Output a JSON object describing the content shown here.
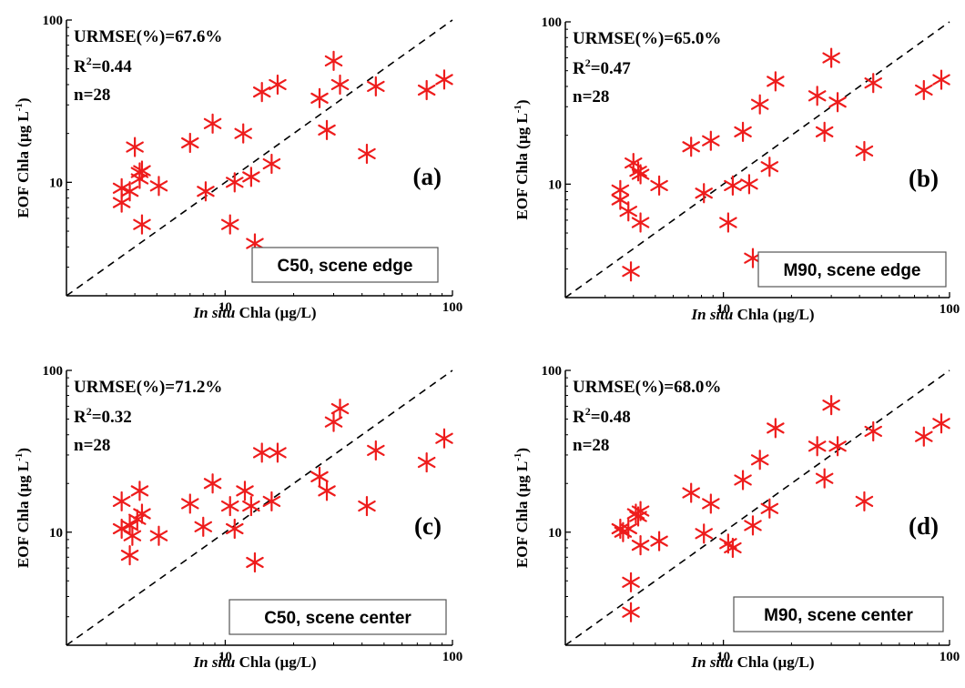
{
  "chart_data": [
    {
      "type": "scatter",
      "panel_tag": "(a)",
      "scene_label": "C50, scene edge",
      "stats": {
        "urmse": "URMSE(%)=67.6%",
        "r2_prefix": "R",
        "r2_sup": "2",
        "r2_value": "=0.44",
        "n": "n=28"
      },
      "xlabel_italic": "In situ",
      "xlabel_rest": " Chla (µg/L)",
      "ylabel": "EOF Chla (µg L",
      "ylabel_sup": "-1",
      "ylabel_end": ")",
      "x_scale": "log",
      "y_scale": "log",
      "xlim": [
        2.0,
        100
      ],
      "ylim": [
        2.0,
        100
      ],
      "x_ticks": [
        {
          "v": 10,
          "label": "10"
        },
        {
          "v": 100,
          "label": "100"
        }
      ],
      "y_ticks": [
        {
          "v": 10,
          "label": "10"
        },
        {
          "v": 100,
          "label": "100"
        }
      ],
      "reference_line": "1:1 dashed",
      "marker": "asterisk",
      "marker_color": "#ee1c1c",
      "points": [
        [
          3.5,
          7.5
        ],
        [
          3.5,
          9.2
        ],
        [
          3.8,
          8.8
        ],
        [
          4.0,
          16.5
        ],
        [
          4.2,
          10.5
        ],
        [
          4.3,
          11.8
        ],
        [
          4.3,
          5.5
        ],
        [
          5.1,
          9.5
        ],
        [
          7.0,
          17.5
        ],
        [
          8.2,
          8.8
        ],
        [
          8.8,
          23.0
        ],
        [
          10.5,
          5.5
        ],
        [
          11.0,
          10.0
        ],
        [
          12.0,
          20.0
        ],
        [
          13.0,
          10.8
        ],
        [
          13.5,
          4.2
        ],
        [
          14.5,
          36.0
        ],
        [
          16.0,
          13.0
        ],
        [
          17.0,
          40.0
        ],
        [
          26.0,
          33.0
        ],
        [
          28.0,
          21.0
        ],
        [
          30.0,
          56.0
        ],
        [
          32.0,
          40.0
        ],
        [
          42.0,
          15.0
        ],
        [
          46.0,
          39.0
        ],
        [
          77.0,
          37.0
        ],
        [
          92.0,
          43.0
        ],
        [
          4.2,
          11.5
        ]
      ]
    },
    {
      "type": "scatter",
      "panel_tag": "(b)",
      "scene_label": "M90, scene edge",
      "stats": {
        "urmse": "URMSE(%)=65.0%",
        "r2_prefix": "R",
        "r2_sup": "2",
        "r2_value": "=0.47",
        "n": "n=28"
      },
      "xlabel_italic": "In situ",
      "xlabel_rest": " Chla (µg/L)",
      "ylabel": "EOF Chla (µg L",
      "ylabel_sup": "-1",
      "ylabel_end": ")",
      "x_scale": "log",
      "y_scale": "log",
      "xlim": [
        2.0,
        100
      ],
      "ylim": [
        2.0,
        100
      ],
      "x_ticks": [
        {
          "v": 10,
          "label": "10"
        },
        {
          "v": 100,
          "label": "100"
        }
      ],
      "y_ticks": [
        {
          "v": 10,
          "label": "10"
        },
        {
          "v": 100,
          "label": "100"
        }
      ],
      "reference_line": "1:1 dashed",
      "marker": "asterisk",
      "marker_color": "#ee1c1c",
      "points": [
        [
          3.5,
          9.2
        ],
        [
          3.5,
          8.0
        ],
        [
          3.8,
          6.8
        ],
        [
          3.9,
          2.9
        ],
        [
          4.0,
          13.5
        ],
        [
          4.2,
          12.0
        ],
        [
          4.3,
          11.5
        ],
        [
          4.3,
          5.8
        ],
        [
          5.2,
          9.8
        ],
        [
          7.2,
          17.0
        ],
        [
          8.2,
          8.8
        ],
        [
          8.8,
          18.5
        ],
        [
          10.5,
          5.8
        ],
        [
          11.0,
          9.8
        ],
        [
          12.2,
          21.0
        ],
        [
          13.0,
          10.0
        ],
        [
          13.5,
          3.5
        ],
        [
          14.5,
          31.0
        ],
        [
          16.0,
          12.8
        ],
        [
          17.0,
          43.0
        ],
        [
          26.0,
          35.0
        ],
        [
          28.0,
          21.0
        ],
        [
          30.0,
          60.0
        ],
        [
          32.0,
          32.0
        ],
        [
          42.0,
          16.0
        ],
        [
          46.0,
          42.0
        ],
        [
          77.0,
          38.0
        ],
        [
          92.0,
          44.0
        ]
      ]
    },
    {
      "type": "scatter",
      "panel_tag": "(c)",
      "scene_label": "C50, scene center",
      "stats": {
        "urmse": "URMSE(%)=71.2%",
        "r2_prefix": "R",
        "r2_sup": "2",
        "r2_value": "=0.32",
        "n": "n=28"
      },
      "xlabel_italic": "In situ",
      "xlabel_rest": " Chla (µg/L)",
      "ylabel": "EOF Chla (µg L",
      "ylabel_sup": "-1",
      "ylabel_end": ")",
      "x_scale": "log",
      "y_scale": "log",
      "xlim": [
        2.0,
        100
      ],
      "ylim": [
        2.0,
        100
      ],
      "x_ticks": [
        {
          "v": 10,
          "label": "10"
        },
        {
          "v": 100,
          "label": "100"
        }
      ],
      "y_ticks": [
        {
          "v": 10,
          "label": "10"
        },
        {
          "v": 100,
          "label": "100"
        }
      ],
      "reference_line": "1:1 dashed",
      "marker": "asterisk",
      "marker_color": "#ee1c1c",
      "points": [
        [
          3.5,
          15.5
        ],
        [
          3.5,
          10.5
        ],
        [
          3.8,
          11.0
        ],
        [
          3.8,
          7.2
        ],
        [
          3.9,
          9.5
        ],
        [
          4.1,
          12.0
        ],
        [
          4.2,
          18.0
        ],
        [
          4.3,
          13.0
        ],
        [
          5.1,
          9.5
        ],
        [
          7.0,
          15.0
        ],
        [
          8.0,
          10.8
        ],
        [
          8.8,
          20.0
        ],
        [
          10.5,
          14.5
        ],
        [
          11.0,
          10.5
        ],
        [
          12.2,
          18.0
        ],
        [
          13.0,
          14.5
        ],
        [
          13.5,
          6.5
        ],
        [
          14.5,
          31.0
        ],
        [
          16.0,
          15.5
        ],
        [
          17.0,
          31.0
        ],
        [
          26.0,
          22.0
        ],
        [
          28.0,
          18.0
        ],
        [
          30.0,
          48.0
        ],
        [
          32.0,
          58.0
        ],
        [
          42.0,
          14.5
        ],
        [
          46.0,
          32.0
        ],
        [
          77.0,
          27.0
        ],
        [
          92.0,
          38.0
        ]
      ]
    },
    {
      "type": "scatter",
      "panel_tag": "(d)",
      "scene_label": "M90, scene center",
      "stats": {
        "urmse": "URMSE(%)=68.0%",
        "r2_prefix": "R",
        "r2_sup": "2",
        "r2_value": "=0.48",
        "n": "n=28"
      },
      "xlabel_italic": "In situ",
      "xlabel_rest": " Chla (µg/L)",
      "ylabel": "EOF Chla (µg L",
      "ylabel_sup": "-1",
      "ylabel_end": ")",
      "x_scale": "log",
      "y_scale": "log",
      "xlim": [
        2.0,
        100
      ],
      "ylim": [
        2.0,
        100
      ],
      "x_ticks": [
        {
          "v": 10,
          "label": "10"
        },
        {
          "v": 100,
          "label": "100"
        }
      ],
      "y_ticks": [
        {
          "v": 10,
          "label": "10"
        },
        {
          "v": 100,
          "label": "100"
        }
      ],
      "reference_line": "1:1 dashed",
      "marker": "asterisk",
      "marker_color": "#ee1c1c",
      "points": [
        [
          3.5,
          10.5
        ],
        [
          3.6,
          10.0
        ],
        [
          3.8,
          10.5
        ],
        [
          3.9,
          4.9
        ],
        [
          3.9,
          3.2
        ],
        [
          4.1,
          13.0
        ],
        [
          4.3,
          13.5
        ],
        [
          4.3,
          8.3
        ],
        [
          5.2,
          8.8
        ],
        [
          7.2,
          17.5
        ],
        [
          8.2,
          9.8
        ],
        [
          8.8,
          15.0
        ],
        [
          10.5,
          8.5
        ],
        [
          11.0,
          8.0
        ],
        [
          12.2,
          21.0
        ],
        [
          13.5,
          11.0
        ],
        [
          14.5,
          28.0
        ],
        [
          16.0,
          14.0
        ],
        [
          17.0,
          44.0
        ],
        [
          26.0,
          34.0
        ],
        [
          28.0,
          21.5
        ],
        [
          30.0,
          61.0
        ],
        [
          32.0,
          34.0
        ],
        [
          42.0,
          15.5
        ],
        [
          46.0,
          42.0
        ],
        [
          77.0,
          39.0
        ],
        [
          92.0,
          47.0
        ],
        [
          4.2,
          12.5
        ]
      ]
    }
  ]
}
